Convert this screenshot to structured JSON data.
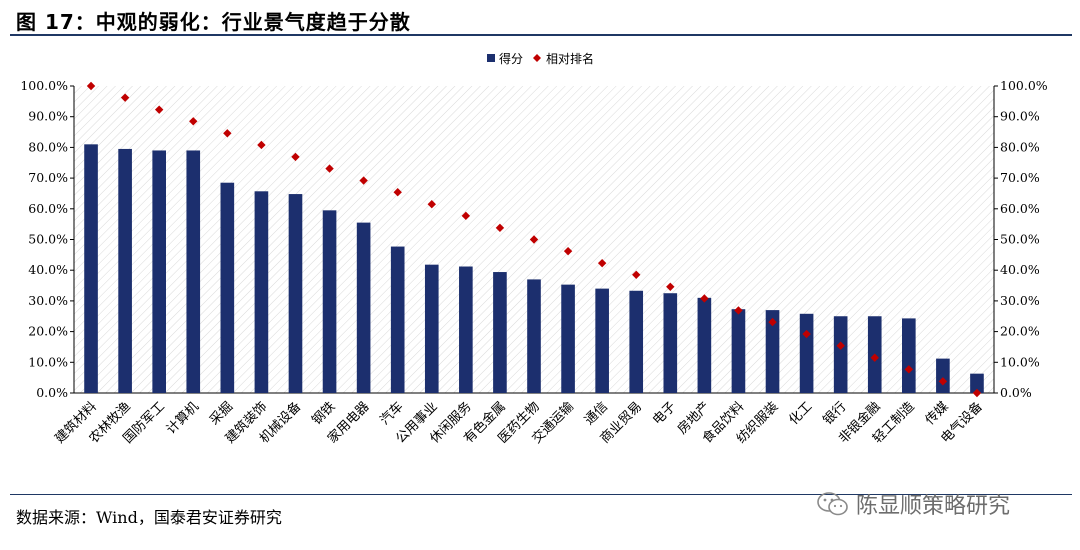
{
  "header": {
    "title": "图 17：中观的弱化：行业景气度趋于分散"
  },
  "footer": {
    "source": "数据来源：Wind，国泰君安证券研究",
    "watermark": "陈显顺策略研究"
  },
  "colors": {
    "bar": "#1c2f6e",
    "marker": "#c00000",
    "rule": "#1f3864"
  },
  "chart_data": {
    "type": "bar",
    "categories": [
      "建筑材料",
      "农林牧渔",
      "国防军工",
      "计算机",
      "采掘",
      "建筑装饰",
      "机械设备",
      "钢铁",
      "家用电器",
      "汽车",
      "公用事业",
      "休闲服务",
      "有色金属",
      "医药生物",
      "交通运输",
      "通信",
      "商业贸易",
      "电子",
      "房地产",
      "食品饮料",
      "纺织服装",
      "化工",
      "银行",
      "非银金融",
      "轻工制造",
      "传媒",
      "电气设备"
    ],
    "series": [
      {
        "name": "得分",
        "kind": "bar",
        "values": [
          0.81,
          0.795,
          0.79,
          0.79,
          0.685,
          0.657,
          0.648,
          0.595,
          0.555,
          0.477,
          0.418,
          0.412,
          0.394,
          0.37,
          0.353,
          0.34,
          0.333,
          0.325,
          0.31,
          0.273,
          0.27,
          0.258,
          0.25,
          0.25,
          0.243,
          0.112,
          0.063
        ]
      },
      {
        "name": "相对排名",
        "kind": "scatter",
        "marker": "diamond",
        "values": [
          1.0,
          0.962,
          0.923,
          0.885,
          0.846,
          0.808,
          0.769,
          0.731,
          0.692,
          0.654,
          0.615,
          0.577,
          0.538,
          0.5,
          0.462,
          0.423,
          0.385,
          0.346,
          0.308,
          0.269,
          0.231,
          0.192,
          0.154,
          0.115,
          0.077,
          0.038,
          0.0
        ]
      }
    ],
    "y_ticks": [
      "100.0%",
      "90.0%",
      "80.0%",
      "70.0%",
      "60.0%",
      "50.0%",
      "40.0%",
      "30.0%",
      "20.0%",
      "10.0%",
      "0.0%"
    ],
    "ylim": [
      0,
      1.0
    ],
    "legend_position": "top-center",
    "grid": "diagonal-hatch"
  }
}
